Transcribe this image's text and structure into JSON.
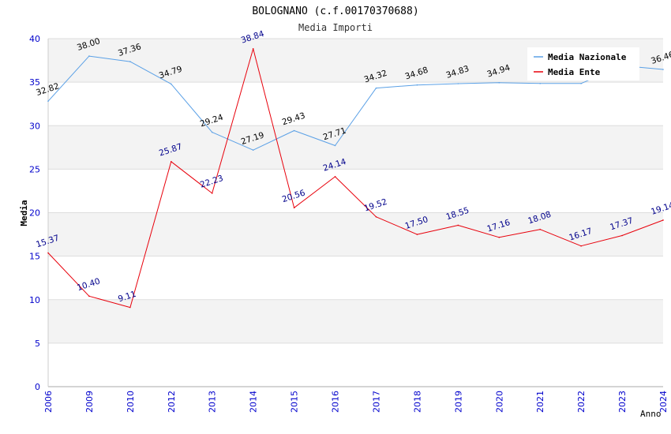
{
  "chart_data": {
    "type": "line",
    "title": "BOLOGNANO (c.f.00170370688)",
    "subtitle": "Media Importi",
    "xlabel": "Anno",
    "ylabel": "Media",
    "ylim": [
      0,
      40
    ],
    "yticks": [
      "0",
      "5",
      "10",
      "15",
      "20",
      "25",
      "30",
      "35",
      "40"
    ],
    "categories": [
      "2006",
      "2009",
      "2010",
      "2012",
      "2013",
      "2014",
      "2015",
      "2016",
      "2017",
      "2018",
      "2019",
      "2020",
      "2021",
      "2022",
      "2023",
      "2024"
    ],
    "grid": "horizontal bands",
    "legend_position": "top-right",
    "series": [
      {
        "name": "Media Nazionale",
        "color": "#5aa0e6",
        "label_color": "#000000",
        "values": [
          32.82,
          38.0,
          37.36,
          34.79,
          29.24,
          27.19,
          29.43,
          27.71,
          34.32,
          34.68,
          34.83,
          34.94,
          34.85,
          34.85,
          36.9,
          36.46
        ],
        "labels": [
          "32.82",
          "38.00",
          "37.36",
          "34.79",
          "29.24",
          "27.19",
          "29.43",
          "27.71",
          "34.32",
          "34.68",
          "34.83",
          "34.94",
          "",
          "",
          "",
          "36.46"
        ]
      },
      {
        "name": "Media Ente",
        "color": "#e8000b",
        "label_color": "#00008b",
        "values": [
          15.37,
          10.4,
          9.11,
          25.87,
          22.23,
          38.84,
          20.56,
          24.14,
          19.52,
          17.5,
          18.55,
          17.16,
          18.08,
          16.17,
          17.37,
          19.14
        ],
        "labels": [
          "15.37",
          "10.40",
          "9.11",
          "25.87",
          "22.23",
          "38.84",
          "20.56",
          "24.14",
          "19.52",
          "17.50",
          "18.55",
          "17.16",
          "18.08",
          "16.17",
          "17.37",
          "19.14"
        ]
      }
    ]
  }
}
